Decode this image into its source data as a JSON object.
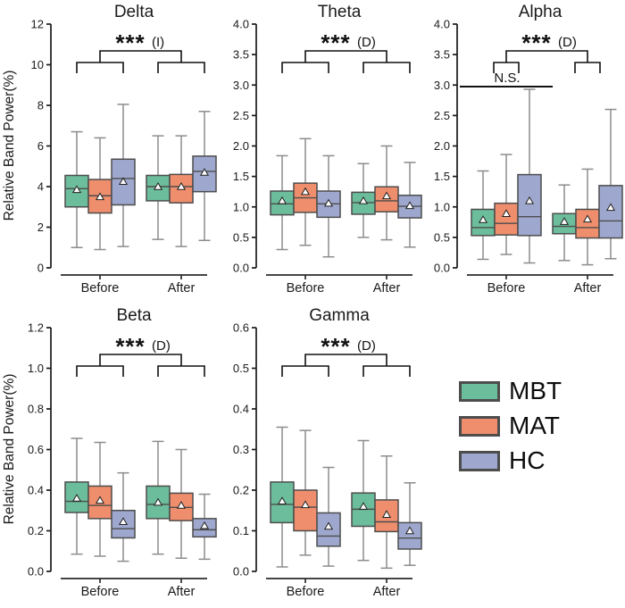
{
  "figure": {
    "ylabel": "Relative Band Power(%)",
    "categories": [
      "Before",
      "After"
    ],
    "groups": [
      {
        "name": "MBT",
        "color": "#6cbd9b"
      },
      {
        "name": "MAT",
        "color": "#ef8e6c"
      },
      {
        "name": "HC",
        "color": "#9ea8ce"
      }
    ],
    "style": {
      "box_border": "#4d4d4d",
      "whisker": "#8c8c8c",
      "axis": "#1a1a1a",
      "annotation": "#111111",
      "mean_marker": "white-triangle"
    }
  },
  "legend": {
    "items": [
      {
        "label": "MBT",
        "color": "#6cbd9b"
      },
      {
        "label": "MAT",
        "color": "#ef8e6c"
      },
      {
        "label": "HC",
        "color": "#9ea8ce"
      }
    ],
    "position": "bottom-right"
  },
  "chart_data": [
    {
      "type": "box",
      "title": "Delta",
      "ylabel": "Relative Band Power(%)",
      "show_ylabel": true,
      "ylim": [
        0,
        12
      ],
      "yticks": [
        0,
        2,
        4,
        6,
        8,
        10,
        12
      ],
      "tick_decimals": 0,
      "categories": [
        "Before",
        "After"
      ],
      "significance": {
        "stars": "***",
        "direction": "(I)"
      },
      "ns_annotation": null,
      "stats_order": [
        "whisker_low",
        "q1",
        "median",
        "q3",
        "whisker_high",
        "mean"
      ],
      "series": [
        {
          "group": "MBT",
          "values": [
            [
              1.0,
              3.0,
              3.9,
              4.55,
              6.7,
              3.85
            ],
            [
              1.4,
              3.3,
              4.0,
              4.55,
              6.5,
              4.0
            ]
          ]
        },
        {
          "group": "MAT",
          "values": [
            [
              0.9,
              2.7,
              3.55,
              4.35,
              6.4,
              3.5
            ],
            [
              1.05,
              3.2,
              4.0,
              4.6,
              6.5,
              4.0
            ]
          ]
        },
        {
          "group": "HC",
          "values": [
            [
              1.05,
              3.1,
              4.4,
              5.35,
              8.05,
              4.25
            ],
            [
              1.35,
              3.75,
              4.75,
              5.5,
              7.7,
              4.7
            ]
          ]
        }
      ]
    },
    {
      "type": "box",
      "title": "Theta",
      "ylabel": "",
      "show_ylabel": false,
      "ylim": [
        0,
        4
      ],
      "yticks": [
        0,
        0.5,
        1.0,
        1.5,
        2.0,
        2.5,
        3.0,
        3.5,
        4.0
      ],
      "tick_decimals": 1,
      "categories": [
        "Before",
        "After"
      ],
      "significance": {
        "stars": "***",
        "direction": "(D)"
      },
      "ns_annotation": null,
      "stats_order": [
        "whisker_low",
        "q1",
        "median",
        "q3",
        "whisker_high",
        "mean"
      ],
      "series": [
        {
          "group": "MBT",
          "values": [
            [
              0.3,
              0.87,
              1.05,
              1.26,
              1.84,
              1.1
            ],
            [
              0.5,
              0.88,
              1.07,
              1.24,
              1.71,
              1.1
            ]
          ]
        },
        {
          "group": "MAT",
          "values": [
            [
              0.37,
              0.91,
              1.15,
              1.39,
              2.12,
              1.25
            ],
            [
              0.46,
              0.92,
              1.1,
              1.33,
              2.0,
              1.18
            ]
          ]
        },
        {
          "group": "HC",
          "values": [
            [
              0.18,
              0.83,
              1.05,
              1.26,
              1.84,
              1.06
            ],
            [
              0.34,
              0.82,
              1.01,
              1.19,
              1.73,
              1.02
            ]
          ]
        }
      ]
    },
    {
      "type": "box",
      "title": "Alpha",
      "ylabel": "",
      "show_ylabel": false,
      "ylim": [
        0,
        4
      ],
      "yticks": [
        0,
        0.5,
        1.0,
        1.5,
        2.0,
        2.5,
        3.0,
        3.5,
        4.0
      ],
      "tick_decimals": 1,
      "categories": [
        "Before",
        "After"
      ],
      "significance": {
        "stars": "***",
        "direction": "(D)"
      },
      "ns_annotation": {
        "label": "N.S."
      },
      "stats_order": [
        "whisker_low",
        "q1",
        "median",
        "q3",
        "whisker_high",
        "mean"
      ],
      "series": [
        {
          "group": "MBT",
          "values": [
            [
              0.14,
              0.53,
              0.66,
              0.96,
              1.59,
              0.79
            ],
            [
              0.12,
              0.56,
              0.68,
              0.89,
              1.36,
              0.76
            ]
          ]
        },
        {
          "group": "MAT",
          "values": [
            [
              0.22,
              0.54,
              0.73,
              1.06,
              1.86,
              0.89
            ],
            [
              0.05,
              0.49,
              0.66,
              0.96,
              1.62,
              0.8
            ]
          ]
        },
        {
          "group": "HC",
          "values": [
            [
              0.08,
              0.53,
              0.84,
              1.53,
              2.93,
              1.1
            ],
            [
              0.15,
              0.49,
              0.77,
              1.35,
              2.6,
              0.99
            ]
          ]
        }
      ]
    },
    {
      "type": "box",
      "title": "Beta",
      "ylabel": "Relative Band Power(%)",
      "show_ylabel": true,
      "ylim": [
        0,
        1.2
      ],
      "yticks": [
        0,
        0.2,
        0.4,
        0.6,
        0.8,
        1.0,
        1.2
      ],
      "tick_decimals": 1,
      "categories": [
        "Before",
        "After"
      ],
      "significance": {
        "stars": "***",
        "direction": "(D)"
      },
      "ns_annotation": null,
      "stats_order": [
        "whisker_low",
        "q1",
        "median",
        "q3",
        "whisker_high",
        "mean"
      ],
      "series": [
        {
          "group": "MBT",
          "values": [
            [
              0.085,
              0.29,
              0.345,
              0.44,
              0.655,
              0.36
            ],
            [
              0.085,
              0.26,
              0.33,
              0.42,
              0.64,
              0.34
            ]
          ]
        },
        {
          "group": "MAT",
          "values": [
            [
              0.075,
              0.26,
              0.325,
              0.42,
              0.635,
              0.35
            ],
            [
              0.065,
              0.25,
              0.315,
              0.385,
              0.6,
              0.325
            ]
          ]
        },
        {
          "group": "HC",
          "values": [
            [
              0.05,
              0.165,
              0.21,
              0.3,
              0.485,
              0.245
            ],
            [
              0.06,
              0.17,
              0.205,
              0.26,
              0.38,
              0.225
            ]
          ]
        }
      ]
    },
    {
      "type": "box",
      "title": "Gamma",
      "ylabel": "",
      "show_ylabel": false,
      "ylim": [
        0,
        0.6
      ],
      "yticks": [
        0,
        0.1,
        0.2,
        0.3,
        0.4,
        0.5,
        0.6
      ],
      "tick_decimals": 1,
      "categories": [
        "Before",
        "After"
      ],
      "significance": {
        "stars": "***",
        "direction": "(D)"
      },
      "ns_annotation": null,
      "stats_order": [
        "whisker_low",
        "q1",
        "median",
        "q3",
        "whisker_high",
        "mean"
      ],
      "series": [
        {
          "group": "MBT",
          "values": [
            [
              0.011,
              0.12,
              0.165,
              0.22,
              0.355,
              0.173
            ],
            [
              0.027,
              0.111,
              0.153,
              0.193,
              0.322,
              0.16
            ]
          ]
        },
        {
          "group": "MAT",
          "values": [
            [
              0.04,
              0.1,
              0.158,
              0.2,
              0.347,
              0.164
            ],
            [
              0.008,
              0.098,
              0.122,
              0.176,
              0.284,
              0.14
            ]
          ]
        },
        {
          "group": "HC",
          "values": [
            [
              0.013,
              0.062,
              0.087,
              0.144,
              0.256,
              0.111
            ],
            [
              0.015,
              0.055,
              0.082,
              0.12,
              0.218,
              0.1
            ]
          ]
        }
      ]
    }
  ]
}
